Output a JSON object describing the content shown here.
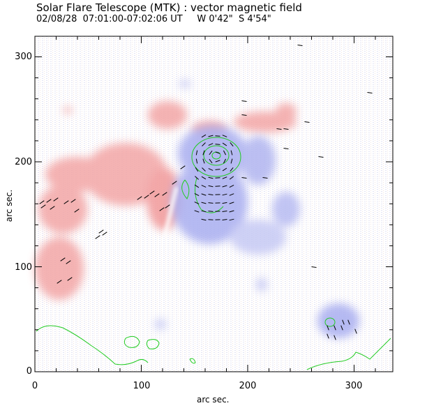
{
  "title": "Solar Flare Telescope (MTK) : vector magnetic field",
  "subtitle": "02/08/28  07:01:00-07:02:06 UT     W 0'42\"  S 4'54\"",
  "x_axis": {
    "label": "arc sec.",
    "ticks": [
      "0",
      "100",
      "200",
      "300"
    ]
  },
  "y_axis": {
    "label": "arc sec.",
    "ticks": [
      "0",
      "100",
      "200",
      "300"
    ]
  },
  "colors": {
    "positive_polarity": "#f3a6a6",
    "negative_polarity": "#a9aef0",
    "contour": "#22cc22",
    "vectors": "#000000"
  }
}
